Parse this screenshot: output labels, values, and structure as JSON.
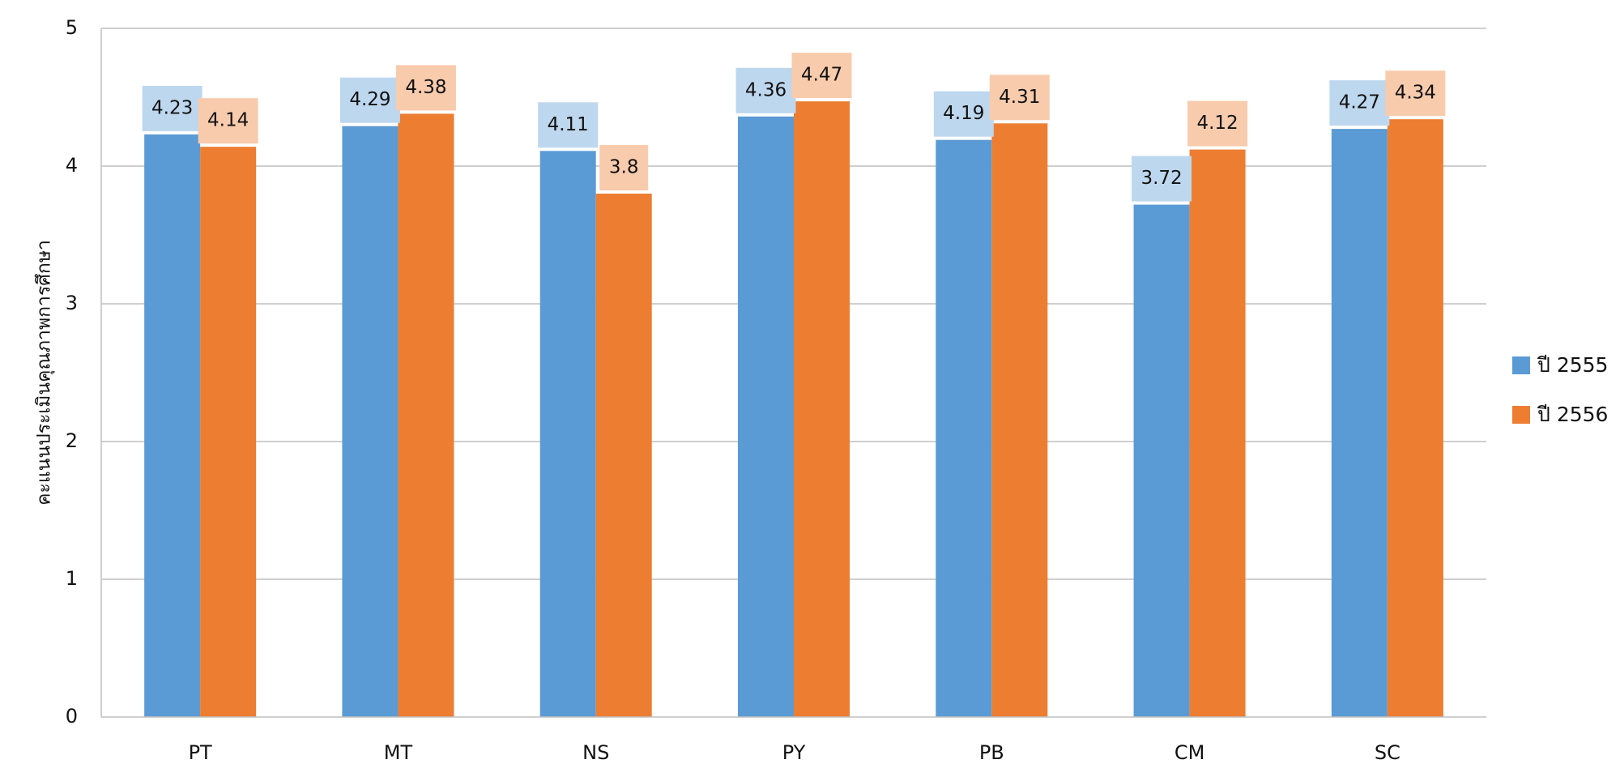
{
  "chart_data": {
    "type": "bar",
    "title": "",
    "xlabel": "",
    "ylabel": "คะแนนประเมินคุณภาพการศึกษา",
    "ylim": [
      0,
      5
    ],
    "yticks": [
      0,
      1,
      2,
      3,
      4,
      5
    ],
    "grid": true,
    "legend_position": "right",
    "categories": [
      "PT",
      "MT",
      "NS",
      "PY",
      "PB",
      "CM",
      "SC"
    ],
    "series": [
      {
        "name": "ปี 2555",
        "color": "#5B9BD5",
        "label_bg": "#BDD7EE",
        "values": [
          4.23,
          4.29,
          4.11,
          4.36,
          4.19,
          3.72,
          4.27
        ]
      },
      {
        "name": "ปี 2556",
        "color": "#ED7D31",
        "label_bg": "#F8CBAD",
        "values": [
          4.14,
          4.38,
          3.8,
          4.47,
          4.31,
          4.12,
          4.34
        ]
      }
    ]
  }
}
